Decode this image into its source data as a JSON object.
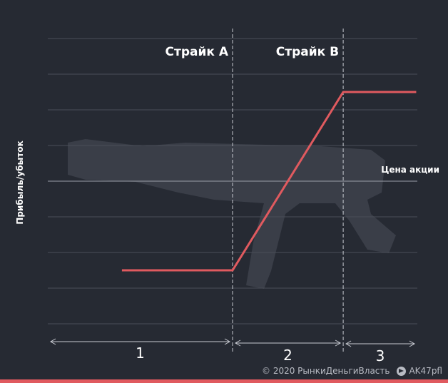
{
  "chart_data": {
    "type": "line",
    "title": "",
    "xlabel": "Цена акции",
    "ylabel": "Прибыль/убыток",
    "strikes": [
      {
        "name": "Страйк А",
        "x": 1
      },
      {
        "name": "Страйк В",
        "x": 2
      }
    ],
    "zones": [
      "1",
      "2",
      "3"
    ],
    "series": [
      {
        "values": [
          [
            0.0,
            -1
          ],
          [
            1,
            -1
          ],
          [
            2,
            1
          ],
          [
            2.66,
            1
          ]
        ]
      }
    ],
    "xlim": [
      -0.67,
      2.67
    ],
    "ylim": [
      -1.6,
      1.6
    ],
    "grid": true,
    "line_color": "#e05a5f"
  },
  "footer": {
    "copyright": "© 2020  РынкиДеньгиВласть",
    "telegram_icon": "telegram-icon",
    "handle": "AK47pfl"
  }
}
